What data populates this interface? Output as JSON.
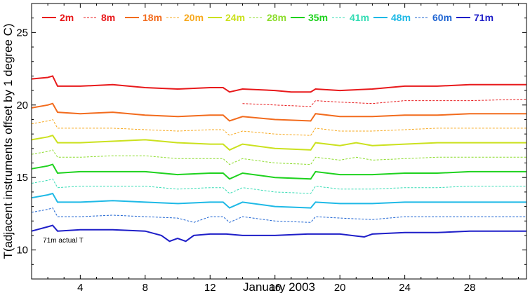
{
  "chart_data": {
    "type": "line",
    "xlabel": "January 2003",
    "ylabel": "T(adjacent instruments offset by 1 degree C)",
    "xlim": [
      1,
      31.5
    ],
    "ylim": [
      8,
      27
    ],
    "xticks": [
      4,
      8,
      12,
      16,
      20,
      24,
      28
    ],
    "yticks": [
      10,
      15,
      20,
      25
    ],
    "legend": "top",
    "annotation": {
      "text": "71m actual T",
      "x": 1.7,
      "y": 10.7
    },
    "series": [
      {
        "name": "2m",
        "color": "#e8191b",
        "style": "solid",
        "points": [
          [
            1,
            21.8
          ],
          [
            2,
            21.9
          ],
          [
            2.3,
            22.0
          ],
          [
            2.6,
            21.3
          ],
          [
            4,
            21.3
          ],
          [
            6,
            21.4
          ],
          [
            8,
            21.2
          ],
          [
            10,
            21.1
          ],
          [
            12,
            21.2
          ],
          [
            12.8,
            21.2
          ],
          [
            13.2,
            20.9
          ],
          [
            14,
            21.1
          ],
          [
            16,
            21.0
          ],
          [
            17,
            20.9
          ],
          [
            18.2,
            20.9
          ],
          [
            18.5,
            21.1
          ],
          [
            20,
            21.0
          ],
          [
            22,
            21.1
          ],
          [
            24,
            21.3
          ],
          [
            26,
            21.3
          ],
          [
            28,
            21.4
          ],
          [
            31.5,
            21.4
          ]
        ]
      },
      {
        "name": "8m",
        "color": "#e8191b",
        "style": "dashed",
        "points": [
          [
            14,
            20.1
          ],
          [
            16,
            20.0
          ],
          [
            18.2,
            19.9
          ],
          [
            18.5,
            20.3
          ],
          [
            20,
            20.2
          ],
          [
            22,
            20.1
          ],
          [
            24,
            20.3
          ],
          [
            26,
            20.3
          ],
          [
            28,
            20.3
          ],
          [
            31.5,
            20.4
          ]
        ]
      },
      {
        "name": "18m",
        "color": "#f26b1d",
        "style": "solid",
        "points": [
          [
            1,
            19.8
          ],
          [
            2,
            20.0
          ],
          [
            2.3,
            20.1
          ],
          [
            2.6,
            19.5
          ],
          [
            4,
            19.4
          ],
          [
            6,
            19.5
          ],
          [
            8,
            19.3
          ],
          [
            10,
            19.2
          ],
          [
            12,
            19.3
          ],
          [
            12.8,
            19.3
          ],
          [
            13.2,
            18.9
          ],
          [
            14,
            19.2
          ],
          [
            16,
            19.0
          ],
          [
            18.2,
            18.9
          ],
          [
            18.5,
            19.4
          ],
          [
            20,
            19.2
          ],
          [
            22,
            19.2
          ],
          [
            24,
            19.3
          ],
          [
            26,
            19.3
          ],
          [
            28,
            19.4
          ],
          [
            31.5,
            19.4
          ]
        ]
      },
      {
        "name": "20m",
        "color": "#f7a91f",
        "style": "dashed",
        "points": [
          [
            1,
            18.7
          ],
          [
            2,
            18.9
          ],
          [
            2.3,
            19.0
          ],
          [
            2.6,
            18.4
          ],
          [
            4,
            18.4
          ],
          [
            6,
            18.4
          ],
          [
            8,
            18.3
          ],
          [
            10,
            18.2
          ],
          [
            12,
            18.3
          ],
          [
            12.8,
            18.3
          ],
          [
            13.2,
            17.9
          ],
          [
            14,
            18.2
          ],
          [
            16,
            18.0
          ],
          [
            18.2,
            17.9
          ],
          [
            18.5,
            18.4
          ],
          [
            20,
            18.2
          ],
          [
            22,
            18.2
          ],
          [
            24,
            18.3
          ],
          [
            26,
            18.4
          ],
          [
            28,
            18.4
          ],
          [
            31.5,
            18.4
          ]
        ]
      },
      {
        "name": "24m",
        "color": "#cbe11e",
        "style": "solid",
        "points": [
          [
            1,
            17.6
          ],
          [
            2,
            17.8
          ],
          [
            2.3,
            17.9
          ],
          [
            2.6,
            17.4
          ],
          [
            4,
            17.4
          ],
          [
            6,
            17.5
          ],
          [
            8,
            17.6
          ],
          [
            10,
            17.4
          ],
          [
            12,
            17.3
          ],
          [
            12.8,
            17.3
          ],
          [
            13.2,
            16.9
          ],
          [
            14,
            17.3
          ],
          [
            16,
            17.0
          ],
          [
            18.2,
            16.9
          ],
          [
            18.5,
            17.4
          ],
          [
            20,
            17.2
          ],
          [
            21,
            17.4
          ],
          [
            22,
            17.2
          ],
          [
            24,
            17.3
          ],
          [
            26,
            17.4
          ],
          [
            28,
            17.4
          ],
          [
            31.5,
            17.4
          ]
        ]
      },
      {
        "name": "28m",
        "color": "#8cdc2b",
        "style": "dashed",
        "points": [
          [
            1,
            16.6
          ],
          [
            2,
            16.8
          ],
          [
            2.3,
            16.9
          ],
          [
            2.6,
            16.4
          ],
          [
            4,
            16.4
          ],
          [
            6,
            16.5
          ],
          [
            8,
            16.5
          ],
          [
            10,
            16.3
          ],
          [
            12,
            16.3
          ],
          [
            12.8,
            16.3
          ],
          [
            13.2,
            15.9
          ],
          [
            14,
            16.3
          ],
          [
            16,
            16.0
          ],
          [
            18.2,
            15.9
          ],
          [
            18.5,
            16.4
          ],
          [
            20,
            16.2
          ],
          [
            21,
            16.4
          ],
          [
            22,
            16.2
          ],
          [
            24,
            16.3
          ],
          [
            26,
            16.4
          ],
          [
            28,
            16.4
          ],
          [
            31.5,
            16.4
          ]
        ]
      },
      {
        "name": "35m",
        "color": "#1ed21e",
        "style": "solid",
        "points": [
          [
            1,
            15.6
          ],
          [
            2,
            15.8
          ],
          [
            2.3,
            15.9
          ],
          [
            2.6,
            15.3
          ],
          [
            4,
            15.4
          ],
          [
            6,
            15.4
          ],
          [
            8,
            15.4
          ],
          [
            10,
            15.2
          ],
          [
            12,
            15.3
          ],
          [
            12.8,
            15.3
          ],
          [
            13.2,
            14.9
          ],
          [
            14,
            15.3
          ],
          [
            16,
            15.0
          ],
          [
            18.2,
            14.9
          ],
          [
            18.5,
            15.4
          ],
          [
            20,
            15.2
          ],
          [
            22,
            15.2
          ],
          [
            24,
            15.3
          ],
          [
            26,
            15.3
          ],
          [
            28,
            15.4
          ],
          [
            31.5,
            15.4
          ]
        ]
      },
      {
        "name": "41m",
        "color": "#35dcb4",
        "style": "dashed",
        "points": [
          [
            1,
            14.6
          ],
          [
            2,
            14.8
          ],
          [
            2.3,
            14.9
          ],
          [
            2.6,
            14.3
          ],
          [
            4,
            14.4
          ],
          [
            6,
            14.4
          ],
          [
            8,
            14.4
          ],
          [
            10,
            14.2
          ],
          [
            12,
            14.3
          ],
          [
            12.8,
            14.3
          ],
          [
            13.2,
            13.9
          ],
          [
            14,
            14.3
          ],
          [
            16,
            14.0
          ],
          [
            18.2,
            13.9
          ],
          [
            18.5,
            14.4
          ],
          [
            20,
            14.2
          ],
          [
            22,
            14.2
          ],
          [
            24,
            14.3
          ],
          [
            26,
            14.3
          ],
          [
            28,
            14.4
          ],
          [
            31.5,
            14.4
          ]
        ]
      },
      {
        "name": "48m",
        "color": "#1eb9e6",
        "style": "solid",
        "points": [
          [
            1,
            13.6
          ],
          [
            2,
            13.8
          ],
          [
            2.3,
            13.9
          ],
          [
            2.6,
            13.3
          ],
          [
            4,
            13.3
          ],
          [
            6,
            13.4
          ],
          [
            8,
            13.3
          ],
          [
            10,
            13.2
          ],
          [
            12,
            13.3
          ],
          [
            12.8,
            13.3
          ],
          [
            13.2,
            12.9
          ],
          [
            14,
            13.3
          ],
          [
            16,
            13.0
          ],
          [
            18.2,
            12.9
          ],
          [
            18.5,
            13.3
          ],
          [
            20,
            13.2
          ],
          [
            22,
            13.2
          ],
          [
            24,
            13.3
          ],
          [
            26,
            13.3
          ],
          [
            28,
            13.3
          ],
          [
            31.5,
            13.3
          ]
        ]
      },
      {
        "name": "60m",
        "color": "#1e64d2",
        "style": "dashed",
        "points": [
          [
            1,
            12.6
          ],
          [
            2,
            12.8
          ],
          [
            2.3,
            12.9
          ],
          [
            2.6,
            12.3
          ],
          [
            4,
            12.3
          ],
          [
            6,
            12.4
          ],
          [
            8,
            12.3
          ],
          [
            10,
            12.2
          ],
          [
            11,
            11.9
          ],
          [
            12,
            12.3
          ],
          [
            12.8,
            12.3
          ],
          [
            13.2,
            11.9
          ],
          [
            14,
            12.3
          ],
          [
            16,
            12.0
          ],
          [
            18.2,
            11.9
          ],
          [
            18.5,
            12.3
          ],
          [
            20,
            12.2
          ],
          [
            22,
            12.1
          ],
          [
            24,
            12.3
          ],
          [
            26,
            12.3
          ],
          [
            28,
            12.3
          ],
          [
            31.5,
            12.3
          ]
        ]
      },
      {
        "name": "71m",
        "color": "#1e1ec8",
        "style": "solid",
        "points": [
          [
            1,
            11.3
          ],
          [
            2,
            11.6
          ],
          [
            2.3,
            11.7
          ],
          [
            2.6,
            11.3
          ],
          [
            4,
            11.4
          ],
          [
            6,
            11.4
          ],
          [
            8,
            11.3
          ],
          [
            9,
            11.0
          ],
          [
            9.5,
            10.6
          ],
          [
            10,
            10.8
          ],
          [
            10.5,
            10.6
          ],
          [
            11,
            11.0
          ],
          [
            12,
            11.1
          ],
          [
            13,
            11.1
          ],
          [
            14,
            11.0
          ],
          [
            16,
            11.0
          ],
          [
            18,
            11.1
          ],
          [
            20,
            11.1
          ],
          [
            21.5,
            10.9
          ],
          [
            22,
            11.1
          ],
          [
            24,
            11.2
          ],
          [
            26,
            11.2
          ],
          [
            28,
            11.3
          ],
          [
            31.5,
            11.3
          ]
        ]
      }
    ]
  }
}
